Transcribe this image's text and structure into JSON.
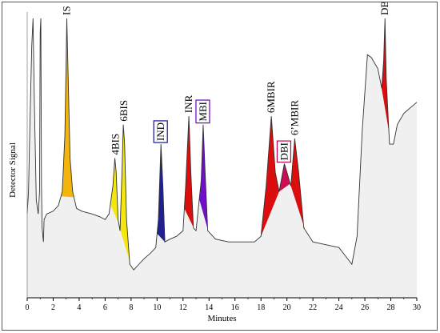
{
  "chart_data": {
    "type": "area",
    "xlabel": "Minutes",
    "ylabel": "Detector Signal",
    "xlim": [
      0,
      30
    ],
    "ylim": [
      0,
      100
    ],
    "x_ticks": [
      0,
      2,
      4,
      6,
      8,
      10,
      12,
      14,
      16,
      18,
      20,
      22,
      24,
      26,
      28,
      30
    ],
    "colors": {
      "baseline_fill": "#f0f0f0",
      "trace": "#333333",
      "orange": "#f2b000",
      "yellow": "#f2e600",
      "blue": "#14148c",
      "red": "#d90000",
      "purple": "#6a00c8",
      "magenta": "#c8004a"
    },
    "trace_points": [
      [
        0.0,
        30
      ],
      [
        0.1,
        38
      ],
      [
        0.2,
        60
      ],
      [
        0.35,
        90
      ],
      [
        0.45,
        100
      ],
      [
        0.55,
        70
      ],
      [
        0.7,
        35
      ],
      [
        0.85,
        30
      ],
      [
        0.95,
        38
      ],
      [
        1.0,
        95
      ],
      [
        1.05,
        100
      ],
      [
        1.1,
        40
      ],
      [
        1.15,
        25
      ],
      [
        1.25,
        20
      ],
      [
        1.3,
        28
      ],
      [
        1.5,
        30
      ],
      [
        2.0,
        31
      ],
      [
        2.4,
        33
      ],
      [
        2.7,
        38
      ],
      [
        2.9,
        58
      ],
      [
        3.0,
        85
      ],
      [
        3.05,
        100
      ],
      [
        3.15,
        80
      ],
      [
        3.3,
        50
      ],
      [
        3.5,
        38
      ],
      [
        3.8,
        32
      ],
      [
        4.2,
        31
      ],
      [
        5.0,
        30
      ],
      [
        5.6,
        29
      ],
      [
        6.0,
        28
      ],
      [
        6.3,
        30
      ],
      [
        6.6,
        40
      ],
      [
        6.75,
        50
      ],
      [
        6.85,
        45
      ],
      [
        7.0,
        28
      ],
      [
        7.15,
        24
      ],
      [
        7.3,
        45
      ],
      [
        7.4,
        62
      ],
      [
        7.5,
        55
      ],
      [
        7.65,
        28
      ],
      [
        7.9,
        12
      ],
      [
        8.2,
        10
      ],
      [
        8.6,
        12
      ],
      [
        9.0,
        14
      ],
      [
        9.5,
        16
      ],
      [
        9.9,
        18
      ],
      [
        10.1,
        28
      ],
      [
        10.3,
        55
      ],
      [
        10.45,
        40
      ],
      [
        10.6,
        20
      ],
      [
        11.0,
        21
      ],
      [
        11.5,
        22
      ],
      [
        12.0,
        24
      ],
      [
        12.2,
        40
      ],
      [
        12.45,
        65
      ],
      [
        12.6,
        45
      ],
      [
        12.8,
        25
      ],
      [
        13.0,
        24
      ],
      [
        13.4,
        42
      ],
      [
        13.55,
        62
      ],
      [
        13.7,
        45
      ],
      [
        13.9,
        24
      ],
      [
        14.5,
        21
      ],
      [
        15.5,
        20
      ],
      [
        16.5,
        20
      ],
      [
        17.5,
        20
      ],
      [
        18.0,
        22
      ],
      [
        18.4,
        40
      ],
      [
        18.8,
        65
      ],
      [
        19.1,
        45
      ],
      [
        19.4,
        38
      ],
      [
        19.8,
        48
      ],
      [
        20.0,
        45
      ],
      [
        20.3,
        40
      ],
      [
        20.6,
        57
      ],
      [
        20.9,
        45
      ],
      [
        21.3,
        25
      ],
      [
        22.0,
        20
      ],
      [
        23.0,
        19
      ],
      [
        24.0,
        18
      ],
      [
        24.5,
        15
      ],
      [
        25.0,
        12
      ],
      [
        25.4,
        22
      ],
      [
        25.8,
        60
      ],
      [
        26.2,
        87
      ],
      [
        26.5,
        86
      ],
      [
        27.0,
        82
      ],
      [
        27.3,
        75
      ],
      [
        27.45,
        85
      ],
      [
        27.55,
        100
      ],
      [
        27.65,
        78
      ],
      [
        27.9,
        55
      ],
      [
        28.2,
        55
      ],
      [
        28.5,
        62
      ],
      [
        29.0,
        66
      ],
      [
        29.5,
        68
      ],
      [
        30.0,
        70
      ]
    ],
    "peaks": [
      {
        "label": "IS",
        "x": 3.05,
        "y": 100,
        "color": "orange",
        "boxed": false
      },
      {
        "label": "4BIS",
        "x": 6.8,
        "y": 50,
        "color": "yellow",
        "boxed": false
      },
      {
        "label": "6BIS",
        "x": 7.45,
        "y": 62,
        "color": "yellow",
        "boxed": false
      },
      {
        "label": "IND",
        "x": 10.3,
        "y": 55,
        "color": "blue",
        "boxed": true
      },
      {
        "label": "INR",
        "x": 12.45,
        "y": 65,
        "color": "red",
        "boxed": false
      },
      {
        "label": "MBI",
        "x": 13.55,
        "y": 62,
        "color": "purple",
        "boxed": true
      },
      {
        "label": "6MBIR",
        "x": 18.8,
        "y": 65,
        "color": "red",
        "boxed": false
      },
      {
        "label": "DBI",
        "x": 19.8,
        "y": 48,
        "color": "magenta",
        "boxed": true
      },
      {
        "label": "6’MBIR",
        "x": 20.6,
        "y": 57,
        "color": "red",
        "boxed": false
      },
      {
        "label": "DBIR",
        "x": 27.55,
        "y": 100,
        "color": "red",
        "boxed": false
      }
    ]
  }
}
